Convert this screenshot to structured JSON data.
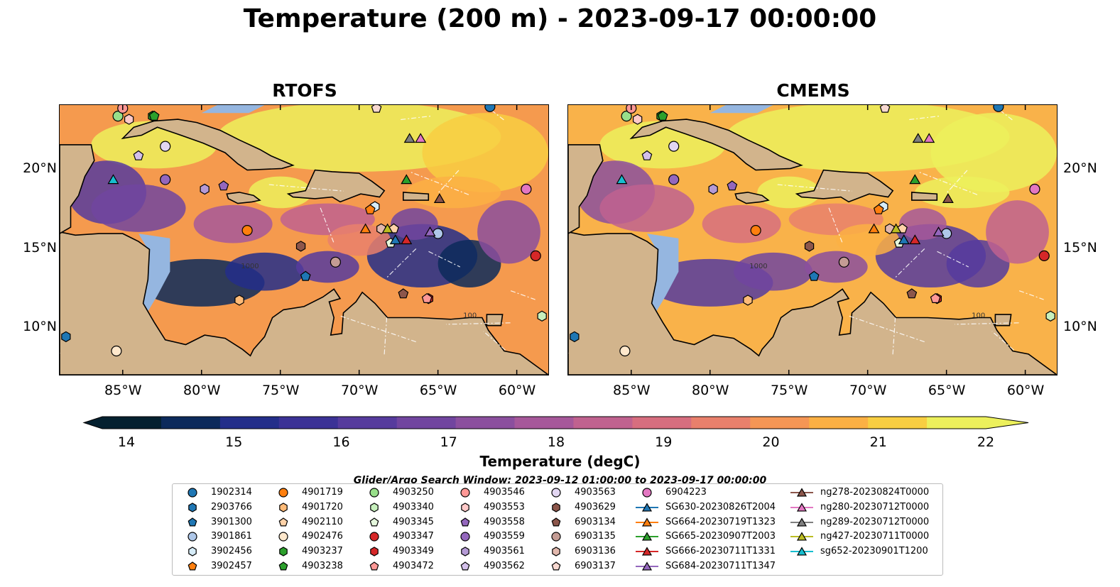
{
  "title": "Temperature (200 m) - 2023-09-17 00:00:00",
  "panels": [
    {
      "title": "RTOFS"
    },
    {
      "title": "CMEMS"
    }
  ],
  "axes": {
    "lon_ticks": [
      "85°W",
      "80°W",
      "75°W",
      "70°W",
      "65°W",
      "60°W"
    ],
    "lon_values": [
      -85,
      -80,
      -75,
      -70,
      -65,
      -60
    ],
    "lat_ticks": [
      "20°N",
      "15°N",
      "10°N"
    ],
    "lat_values": [
      20,
      15,
      10
    ],
    "lon_range": [
      -89,
      -58
    ],
    "lat_range": [
      7,
      24
    ]
  },
  "colorbar": {
    "title": "Temperature (degC)",
    "ticks": [
      "14",
      "15",
      "16",
      "17",
      "18",
      "19",
      "20",
      "21",
      "22"
    ],
    "range": [
      14,
      22
    ],
    "colormap": "thermal",
    "extend": "both"
  },
  "contour_labels": [
    "1000",
    "100"
  ],
  "search_window": "Glider/Argo Search Window: 2023-09-12 01:00:00 to 2023-09-17 00:00:00",
  "legend": {
    "columns": [
      [
        {
          "label": "1902314",
          "marker": "circle",
          "color": "#1f77b4"
        },
        {
          "label": "2903766",
          "marker": "hexagon",
          "color": "#1f77b4"
        },
        {
          "label": "3901300",
          "marker": "pentagon",
          "color": "#1f77b4"
        },
        {
          "label": "3901861",
          "marker": "circle",
          "color": "#aec7e8"
        },
        {
          "label": "3902456",
          "marker": "hexagon",
          "color": "#d6ecf8"
        },
        {
          "label": "3902457",
          "marker": "pentagon",
          "color": "#ff7f0e"
        }
      ],
      [
        {
          "label": "4901719",
          "marker": "circle",
          "color": "#ff7f0e"
        },
        {
          "label": "4901720",
          "marker": "hexagon",
          "color": "#ffbb78"
        },
        {
          "label": "4902110",
          "marker": "pentagon",
          "color": "#ffd2a8"
        },
        {
          "label": "4902476",
          "marker": "circle",
          "color": "#ffe8cc"
        },
        {
          "label": "4903237",
          "marker": "hexagon",
          "color": "#2ca02c"
        },
        {
          "label": "4903238",
          "marker": "pentagon",
          "color": "#2ca02c"
        }
      ],
      [
        {
          "label": "4903250",
          "marker": "circle",
          "color": "#98df8a"
        },
        {
          "label": "4903340",
          "marker": "hexagon",
          "color": "#c7f0bd"
        },
        {
          "label": "4903345",
          "marker": "pentagon",
          "color": "#e5f8dd"
        },
        {
          "label": "4903347",
          "marker": "circle",
          "color": "#d62728"
        },
        {
          "label": "4903349",
          "marker": "hexagon",
          "color": "#d62728"
        },
        {
          "label": "4903472",
          "marker": "pentagon",
          "color": "#ff9896"
        }
      ],
      [
        {
          "label": "4903546",
          "marker": "circle",
          "color": "#ff9896"
        },
        {
          "label": "4903553",
          "marker": "hexagon",
          "color": "#ffc9c8"
        },
        {
          "label": "4903558",
          "marker": "pentagon",
          "color": "#9467bd"
        },
        {
          "label": "4903559",
          "marker": "circle",
          "color": "#9467bd"
        },
        {
          "label": "4903561",
          "marker": "hexagon",
          "color": "#b59ad6"
        },
        {
          "label": "4903562",
          "marker": "pentagon",
          "color": "#d3c0ea"
        }
      ],
      [
        {
          "label": "4903563",
          "marker": "circle",
          "color": "#e2d6f2"
        },
        {
          "label": "4903629",
          "marker": "hexagon",
          "color": "#8c564b"
        },
        {
          "label": "6903134",
          "marker": "pentagon",
          "color": "#8c564b"
        },
        {
          "label": "6903135",
          "marker": "circle",
          "color": "#c49c94"
        },
        {
          "label": "6903136",
          "marker": "hexagon",
          "color": "#e2b8ad"
        },
        {
          "label": "6903137",
          "marker": "pentagon",
          "color": "#f7d8d0"
        }
      ],
      [
        {
          "label": "6904223",
          "marker": "circle",
          "color": "#e377c2"
        },
        {
          "label": "SG630-20230826T2004",
          "marker": "triangle",
          "color": "#1f77b4"
        },
        {
          "label": "SG664-20230719T1323",
          "marker": "triangle",
          "color": "#ff7f0e"
        },
        {
          "label": "SG665-20230907T2003",
          "marker": "triangle",
          "color": "#2ca02c"
        },
        {
          "label": "SG666-20230711T1331",
          "marker": "triangle",
          "color": "#d62728"
        },
        {
          "label": "SG684-20230711T1347",
          "marker": "triangle",
          "color": "#9467bd"
        }
      ],
      [
        {
          "label": "ng278-20230824T0000",
          "marker": "triangle",
          "color": "#8c564b"
        },
        {
          "label": "ng280-20230712T0000",
          "marker": "triangle",
          "color": "#e377c2"
        },
        {
          "label": "ng289-20230712T0000",
          "marker": "triangle",
          "color": "#7f7f7f"
        },
        {
          "label": "ng427-20230711T0000",
          "marker": "triangle",
          "color": "#bcbd22"
        },
        {
          "label": "sg652-20230901T1200",
          "marker": "triangle",
          "color": "#17becf"
        }
      ]
    ]
  },
  "observations": [
    {
      "label": "1902314",
      "lon": -61.7,
      "lat": 23.9
    },
    {
      "label": "2903766",
      "lon": -88.6,
      "lat": 9.4
    },
    {
      "label": "3901300",
      "lon": -73.4,
      "lat": 13.2
    },
    {
      "label": "3901861",
      "lon": -65.0,
      "lat": 15.9
    },
    {
      "label": "3902456",
      "lon": -69.0,
      "lat": 17.6
    },
    {
      "label": "3902457",
      "lon": -69.3,
      "lat": 17.4
    },
    {
      "label": "4901719",
      "lon": -77.1,
      "lat": 16.1
    },
    {
      "label": "4901720",
      "lon": -77.6,
      "lat": 11.7
    },
    {
      "label": "4902110",
      "lon": -67.8,
      "lat": 16.2
    },
    {
      "label": "4902476",
      "lon": -85.4,
      "lat": 8.5
    },
    {
      "label": "4903237",
      "lon": -83.1,
      "lat": 23.3
    },
    {
      "label": "4903238",
      "lon": -83.0,
      "lat": 23.3
    },
    {
      "label": "4903250",
      "lon": -85.3,
      "lat": 23.3
    },
    {
      "label": "4903340",
      "lon": -58.4,
      "lat": 10.7
    },
    {
      "label": "4903345",
      "lon": -68.0,
      "lat": 15.3
    },
    {
      "label": "4903347",
      "lon": -58.8,
      "lat": 14.5
    },
    {
      "label": "4903349",
      "lon": -65.6,
      "lat": 11.8
    },
    {
      "label": "4903472",
      "lon": -65.7,
      "lat": 11.8
    },
    {
      "label": "4903546",
      "lon": -85.0,
      "lat": 23.8
    },
    {
      "label": "4903553",
      "lon": -84.6,
      "lat": 23.1
    },
    {
      "label": "4903558",
      "lon": -78.6,
      "lat": 18.9
    },
    {
      "label": "4903559",
      "lon": -82.3,
      "lat": 19.3
    },
    {
      "label": "4903561",
      "lon": -79.8,
      "lat": 18.7
    },
    {
      "label": "4903562",
      "lon": -84.0,
      "lat": 20.8
    },
    {
      "label": "4903563",
      "lon": -82.3,
      "lat": 21.4
    },
    {
      "label": "4903629",
      "lon": -73.7,
      "lat": 15.1
    },
    {
      "label": "6903134",
      "lon": -67.2,
      "lat": 12.1
    },
    {
      "label": "6903135",
      "lon": -71.5,
      "lat": 14.1
    },
    {
      "label": "6903136",
      "lon": -68.6,
      "lat": 16.2
    },
    {
      "label": "6903137",
      "lon": -68.9,
      "lat": 23.8
    },
    {
      "label": "6904223",
      "lon": -59.4,
      "lat": 18.7
    },
    {
      "label": "SG630-20230826T2004",
      "lon": -67.7,
      "lat": 15.5
    },
    {
      "label": "SG664-20230719T1323",
      "lon": -69.6,
      "lat": 16.2
    },
    {
      "label": "SG665-20230907T2003",
      "lon": -67.0,
      "lat": 19.3
    },
    {
      "label": "SG666-20230711T1331",
      "lon": -67.0,
      "lat": 15.5
    },
    {
      "label": "SG684-20230711T1347",
      "lon": -65.5,
      "lat": 16.0
    },
    {
      "label": "ng278-20230824T0000",
      "lon": -64.9,
      "lat": 18.1
    },
    {
      "label": "ng280-20230712T0000",
      "lon": -66.1,
      "lat": 21.9
    },
    {
      "label": "ng289-20230712T0000",
      "lon": -66.8,
      "lat": 21.9
    },
    {
      "label": "ng427-20230711T0000",
      "lon": -68.2,
      "lat": 16.2
    },
    {
      "label": "sg652-20230901T1200",
      "lon": -85.6,
      "lat": 19.3
    }
  ],
  "colors": {
    "land": "#d2b48c",
    "shelf": "#95b6e0",
    "coastline": "#000000"
  }
}
